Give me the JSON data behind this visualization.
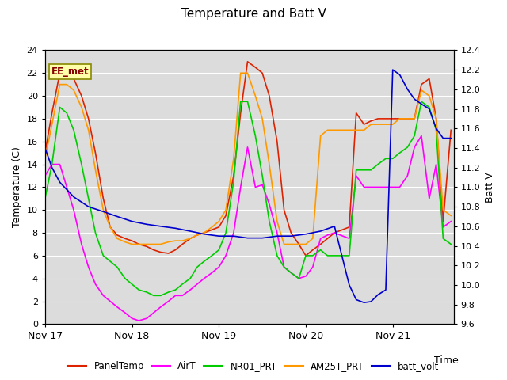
{
  "title": "Temperature and Batt V",
  "xlabel": "Time",
  "ylabel_left": "Temperature (C)",
  "ylabel_right": "Batt V",
  "annotation": "EE_met",
  "bg_color": "#dcdcdc",
  "ylim_left": [
    0,
    24
  ],
  "ylim_right": [
    9.6,
    12.4
  ],
  "yticks_left": [
    0,
    2,
    4,
    6,
    8,
    10,
    12,
    14,
    16,
    18,
    20,
    22,
    24
  ],
  "yticks_right": [
    9.6,
    9.8,
    10.0,
    10.2,
    10.4,
    10.6,
    10.8,
    11.0,
    11.2,
    11.4,
    11.6,
    11.8,
    12.0,
    12.2,
    12.4
  ],
  "xtick_positions": [
    0,
    1,
    2,
    3,
    4
  ],
  "xtick_labels": [
    "Nov 17",
    "Nov 18",
    "Nov 19",
    "Nov 20",
    "Nov 21"
  ],
  "xlim": [
    0,
    4.7
  ],
  "legend": [
    {
      "label": "PanelTemp",
      "color": "#dd2200"
    },
    {
      "label": "AirT",
      "color": "#ff00ff"
    },
    {
      "label": "NR01_PRT",
      "color": "#00cc00"
    },
    {
      "label": "AM25T_PRT",
      "color": "#ff9900"
    },
    {
      "label": "batt_volt",
      "color": "#0000cc"
    }
  ],
  "panel_temp_x": [
    0.0,
    0.08,
    0.17,
    0.25,
    0.33,
    0.42,
    0.5,
    0.58,
    0.67,
    0.75,
    0.83,
    0.92,
    1.0,
    1.08,
    1.17,
    1.25,
    1.33,
    1.42,
    1.5,
    1.58,
    1.67,
    1.75,
    1.83,
    2.0,
    2.08,
    2.17,
    2.25,
    2.33,
    2.42,
    2.5,
    2.58,
    2.67,
    2.75,
    2.83,
    2.92,
    3.0,
    3.08,
    3.17,
    3.25,
    3.33,
    3.5,
    3.58,
    3.67,
    3.75,
    3.83,
    3.92,
    4.0,
    4.08,
    4.17,
    4.25,
    4.33,
    4.42,
    4.5,
    4.58,
    4.67
  ],
  "panel_temp_y": [
    15.0,
    18.5,
    22.0,
    22.0,
    21.5,
    20.0,
    18.0,
    15.0,
    11.0,
    8.5,
    7.8,
    7.5,
    7.3,
    7.0,
    6.8,
    6.5,
    6.3,
    6.2,
    6.5,
    7.0,
    7.5,
    7.8,
    8.0,
    8.5,
    9.5,
    13.0,
    18.5,
    23.0,
    22.5,
    22.0,
    20.0,
    16.0,
    10.0,
    8.0,
    7.0,
    6.0,
    6.5,
    7.0,
    7.5,
    8.0,
    8.5,
    18.5,
    17.5,
    17.8,
    18.0,
    18.0,
    18.0,
    18.0,
    18.0,
    18.0,
    21.0,
    21.5,
    18.0,
    9.0,
    17.0
  ],
  "air_temp_x": [
    0.0,
    0.08,
    0.17,
    0.25,
    0.33,
    0.42,
    0.5,
    0.58,
    0.67,
    0.75,
    0.83,
    0.92,
    1.0,
    1.08,
    1.17,
    1.25,
    1.33,
    1.42,
    1.5,
    1.58,
    1.67,
    1.75,
    1.83,
    1.92,
    2.0,
    2.08,
    2.17,
    2.25,
    2.33,
    2.42,
    2.5,
    2.58,
    2.67,
    2.75,
    2.83,
    2.92,
    3.0,
    3.08,
    3.17,
    3.25,
    3.33,
    3.5,
    3.58,
    3.67,
    3.75,
    3.83,
    3.92,
    4.0,
    4.08,
    4.17,
    4.25,
    4.33,
    4.42,
    4.5,
    4.58,
    4.67
  ],
  "air_temp_y": [
    13.0,
    14.0,
    14.0,
    12.0,
    10.0,
    7.0,
    5.0,
    3.5,
    2.5,
    2.0,
    1.5,
    1.0,
    0.5,
    0.3,
    0.5,
    1.0,
    1.5,
    2.0,
    2.5,
    2.5,
    3.0,
    3.5,
    4.0,
    4.5,
    5.0,
    6.0,
    8.0,
    12.0,
    15.5,
    12.0,
    12.2,
    10.5,
    8.0,
    5.0,
    4.5,
    4.0,
    4.2,
    5.0,
    7.5,
    7.8,
    8.0,
    7.5,
    13.0,
    12.0,
    12.0,
    12.0,
    12.0,
    12.0,
    12.0,
    13.0,
    15.5,
    16.5,
    11.0,
    14.0,
    8.5,
    9.0
  ],
  "nr01_prt_x": [
    0.0,
    0.08,
    0.17,
    0.25,
    0.33,
    0.42,
    0.5,
    0.58,
    0.67,
    0.75,
    0.83,
    0.92,
    1.0,
    1.08,
    1.17,
    1.25,
    1.33,
    1.42,
    1.5,
    1.58,
    1.67,
    1.75,
    1.83,
    1.92,
    2.0,
    2.08,
    2.17,
    2.25,
    2.33,
    2.42,
    2.5,
    2.58,
    2.67,
    2.75,
    2.83,
    2.92,
    3.0,
    3.08,
    3.17,
    3.25,
    3.33,
    3.5,
    3.58,
    3.67,
    3.75,
    3.83,
    3.92,
    4.0,
    4.08,
    4.17,
    4.25,
    4.33,
    4.42,
    4.5,
    4.58,
    4.67
  ],
  "nr01_prt_y": [
    11.0,
    14.0,
    19.0,
    18.5,
    17.0,
    14.0,
    11.0,
    8.0,
    6.0,
    5.5,
    5.0,
    4.0,
    3.5,
    3.0,
    2.8,
    2.5,
    2.5,
    2.8,
    3.0,
    3.5,
    4.0,
    5.0,
    5.5,
    6.0,
    6.5,
    8.0,
    12.5,
    19.5,
    19.5,
    16.5,
    13.0,
    9.0,
    6.0,
    5.0,
    4.5,
    4.0,
    6.0,
    6.0,
    6.5,
    6.0,
    6.0,
    6.0,
    13.5,
    13.5,
    13.5,
    14.0,
    14.5,
    14.5,
    15.0,
    15.5,
    16.5,
    19.5,
    19.0,
    17.0,
    7.5,
    7.0
  ],
  "am25t_prt_x": [
    0.0,
    0.08,
    0.17,
    0.25,
    0.33,
    0.42,
    0.5,
    0.58,
    0.67,
    0.75,
    0.83,
    0.92,
    1.0,
    1.08,
    1.17,
    1.25,
    1.33,
    1.42,
    1.5,
    1.58,
    1.67,
    1.75,
    1.83,
    1.92,
    2.0,
    2.08,
    2.17,
    2.25,
    2.33,
    2.42,
    2.5,
    2.58,
    2.67,
    2.75,
    2.83,
    2.92,
    3.0,
    3.08,
    3.17,
    3.25,
    3.33,
    3.5,
    3.58,
    3.67,
    3.75,
    3.83,
    3.92,
    4.0,
    4.08,
    4.17,
    4.25,
    4.33,
    4.42,
    4.5,
    4.58,
    4.67
  ],
  "am25t_prt_y": [
    14.5,
    17.5,
    21.0,
    21.0,
    20.5,
    19.0,
    17.0,
    13.5,
    10.0,
    8.5,
    7.5,
    7.2,
    7.0,
    7.0,
    7.0,
    7.0,
    7.0,
    7.2,
    7.3,
    7.3,
    7.5,
    7.8,
    8.0,
    8.5,
    9.0,
    10.0,
    14.5,
    22.0,
    22.0,
    20.0,
    18.0,
    14.0,
    9.0,
    7.0,
    7.0,
    7.0,
    7.0,
    7.5,
    16.5,
    17.0,
    17.0,
    17.0,
    17.0,
    17.0,
    17.5,
    17.5,
    17.5,
    17.5,
    18.0,
    18.0,
    18.0,
    20.5,
    20.0,
    18.0,
    10.0,
    9.5
  ],
  "batt_volt_x": [
    0.0,
    0.08,
    0.17,
    0.33,
    0.5,
    0.67,
    0.83,
    1.0,
    1.17,
    1.33,
    1.5,
    1.67,
    1.83,
    2.0,
    2.17,
    2.33,
    2.5,
    2.67,
    2.83,
    3.0,
    3.17,
    3.33,
    3.5,
    3.58,
    3.67,
    3.75,
    3.83,
    3.92,
    4.0,
    4.08,
    4.17,
    4.25,
    4.33,
    4.42,
    4.5,
    4.58,
    4.67
  ],
  "batt_volt_y": [
    11.4,
    11.2,
    11.05,
    10.9,
    10.8,
    10.75,
    10.7,
    10.65,
    10.62,
    10.6,
    10.58,
    10.55,
    10.52,
    10.5,
    10.5,
    10.48,
    10.48,
    10.5,
    10.5,
    10.52,
    10.55,
    10.6,
    10.0,
    9.85,
    9.82,
    9.83,
    9.9,
    9.95,
    12.2,
    12.15,
    12.0,
    11.9,
    11.85,
    11.8,
    11.6,
    11.5,
    11.5
  ]
}
